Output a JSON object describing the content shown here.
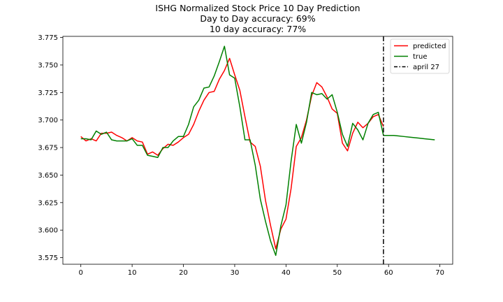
{
  "chart_data": {
    "type": "line",
    "title_lines": [
      "ISHG Normalized Stock Price 10 Day Prediction",
      "Day to Day accuracy: 69%",
      "10 day accuracy: 77%"
    ],
    "xlim": [
      -3.5,
      72.5
    ],
    "ylim": [
      3.569,
      3.776
    ],
    "x_ticks": [
      0,
      10,
      20,
      30,
      40,
      50,
      60,
      70
    ],
    "y_ticks": [
      3.575,
      3.6,
      3.625,
      3.65,
      3.675,
      3.7,
      3.725,
      3.75,
      3.775
    ],
    "y_tick_labels": [
      "3.575",
      "3.600",
      "3.625",
      "3.650",
      "3.675",
      "3.700",
      "3.725",
      "3.750",
      "3.775"
    ],
    "grid": false,
    "legend_position": "top-right",
    "series": [
      {
        "name": "predicted",
        "color": "#ff0000",
        "x": [
          0,
          1,
          2,
          3,
          4,
          5,
          6,
          7,
          8,
          9,
          10,
          11,
          12,
          13,
          14,
          15,
          16,
          17,
          18,
          19,
          20,
          21,
          22,
          23,
          24,
          25,
          26,
          27,
          28,
          29,
          30,
          31,
          32,
          33,
          34,
          35,
          36,
          37,
          38,
          39,
          40,
          41,
          42,
          43,
          44,
          45,
          46,
          47,
          48,
          49,
          50,
          51,
          52,
          53,
          54,
          55,
          56,
          57,
          58,
          59
        ],
        "y": [
          3.685,
          3.681,
          3.683,
          3.681,
          3.688,
          3.688,
          3.689,
          3.686,
          3.684,
          3.681,
          3.684,
          3.681,
          3.68,
          3.669,
          3.671,
          3.668,
          3.674,
          3.678,
          3.677,
          3.68,
          3.684,
          3.687,
          3.696,
          3.708,
          3.718,
          3.725,
          3.726,
          3.737,
          3.745,
          3.756,
          3.741,
          3.727,
          3.703,
          3.68,
          3.676,
          3.658,
          3.627,
          3.604,
          3.583,
          3.601,
          3.61,
          3.638,
          3.676,
          3.684,
          3.7,
          3.722,
          3.734,
          3.73,
          3.721,
          3.71,
          3.706,
          3.679,
          3.672,
          3.688,
          3.698,
          3.693,
          3.697,
          3.703,
          3.705,
          3.694
        ]
      },
      {
        "name": "true",
        "color": "#008000",
        "x": [
          0,
          1,
          2,
          3,
          4,
          5,
          6,
          7,
          8,
          9,
          10,
          11,
          12,
          13,
          14,
          15,
          16,
          17,
          18,
          19,
          20,
          21,
          22,
          23,
          24,
          25,
          26,
          27,
          28,
          29,
          30,
          31,
          32,
          33,
          34,
          35,
          36,
          37,
          38,
          39,
          40,
          41,
          42,
          43,
          44,
          45,
          46,
          47,
          48,
          49,
          50,
          51,
          52,
          53,
          54,
          55,
          56,
          57,
          58,
          59,
          60,
          61,
          62,
          63,
          64,
          65,
          66,
          67,
          68,
          69
        ],
        "y": [
          3.683,
          3.683,
          3.682,
          3.69,
          3.687,
          3.689,
          3.682,
          3.681,
          3.681,
          3.681,
          3.683,
          3.677,
          3.677,
          3.668,
          3.667,
          3.666,
          3.675,
          3.675,
          3.681,
          3.685,
          3.685,
          3.696,
          3.712,
          3.718,
          3.729,
          3.73,
          3.74,
          3.753,
          3.767,
          3.741,
          3.738,
          3.712,
          3.682,
          3.682,
          3.659,
          3.628,
          3.608,
          3.59,
          3.577,
          3.604,
          3.623,
          3.663,
          3.696,
          3.679,
          3.698,
          3.725,
          3.723,
          3.724,
          3.719,
          3.723,
          3.707,
          3.687,
          3.676,
          3.697,
          3.691,
          3.682,
          3.697,
          3.705,
          3.707,
          3.686,
          3.686,
          3.686,
          3.6855,
          3.685,
          3.6845,
          3.684,
          3.6835,
          3.683,
          3.6825,
          3.682
        ]
      }
    ],
    "vline": {
      "name": "april 27",
      "x": 59,
      "color": "#000000",
      "style": "dash-dot"
    }
  }
}
